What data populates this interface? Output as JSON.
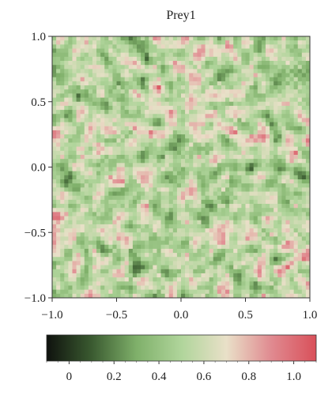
{
  "chart_data": {
    "type": "heatmap",
    "title": "Prey1",
    "xlabel": "",
    "ylabel": "",
    "xlim": [
      -1.0,
      1.0
    ],
    "ylim": [
      -1.0,
      1.0
    ],
    "x_ticks": [
      "-1.0",
      "-0.5",
      "0.0",
      "0.5",
      "1.0"
    ],
    "y_ticks": [
      "1.0",
      "0.5",
      "0.0",
      "-0.5",
      "-1.0"
    ],
    "grid_resolution": [
      64,
      64
    ],
    "value_note": "random spatial field",
    "colorbar": {
      "range": [
        -0.1,
        1.1
      ],
      "ticks": [
        "0",
        "0.2",
        "0.4",
        "0.6",
        "0.8",
        "1.0"
      ],
      "tick_values": [
        0,
        0.2,
        0.4,
        0.6,
        0.8,
        1.0
      ],
      "colors": [
        "#0f120e",
        "#3a5a30",
        "#7fb06a",
        "#b0d59b",
        "#e9e0c8",
        "#e08a90",
        "#d9505a"
      ]
    }
  }
}
